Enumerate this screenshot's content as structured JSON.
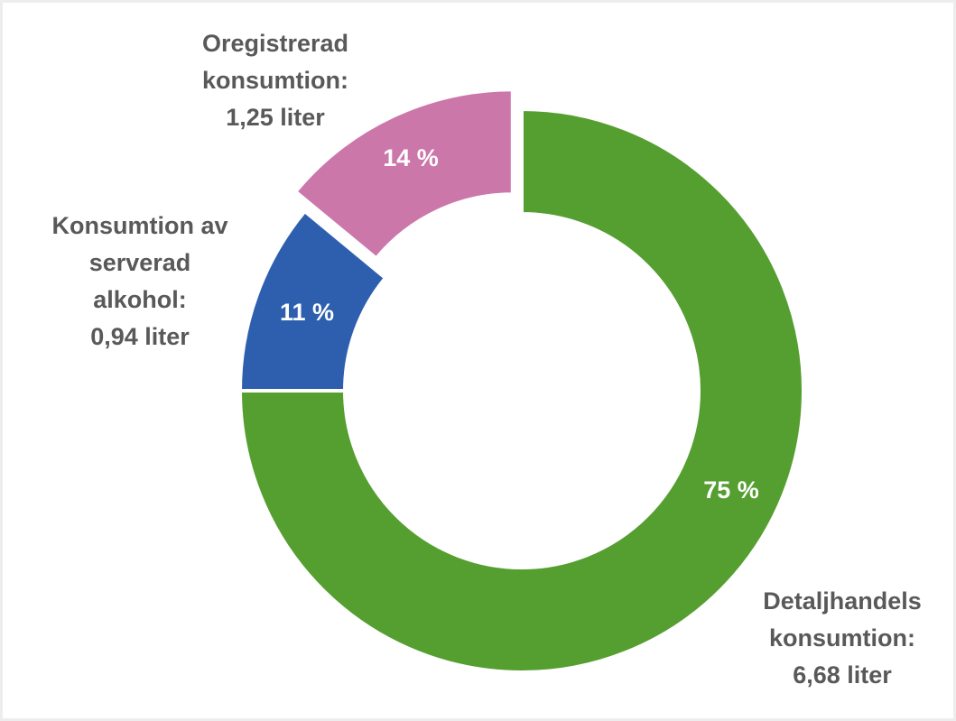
{
  "chart_data": {
    "type": "donut",
    "categories": [
      [
        "Detaljhandels",
        "konsumtion:",
        "6,68 liter"
      ],
      [
        "Konsumtion av",
        "serverad",
        "alkohol:",
        "0,94 liter"
      ],
      [
        "Oregistrerad",
        "konsumtion:",
        "1,25 liter"
      ]
    ],
    "values": [
      75,
      11,
      14
    ],
    "value_labels": [
      "75 %",
      "11 %",
      "14 %"
    ],
    "colors": [
      "#559e30",
      "#2e5fae",
      "#cc77aa"
    ]
  }
}
